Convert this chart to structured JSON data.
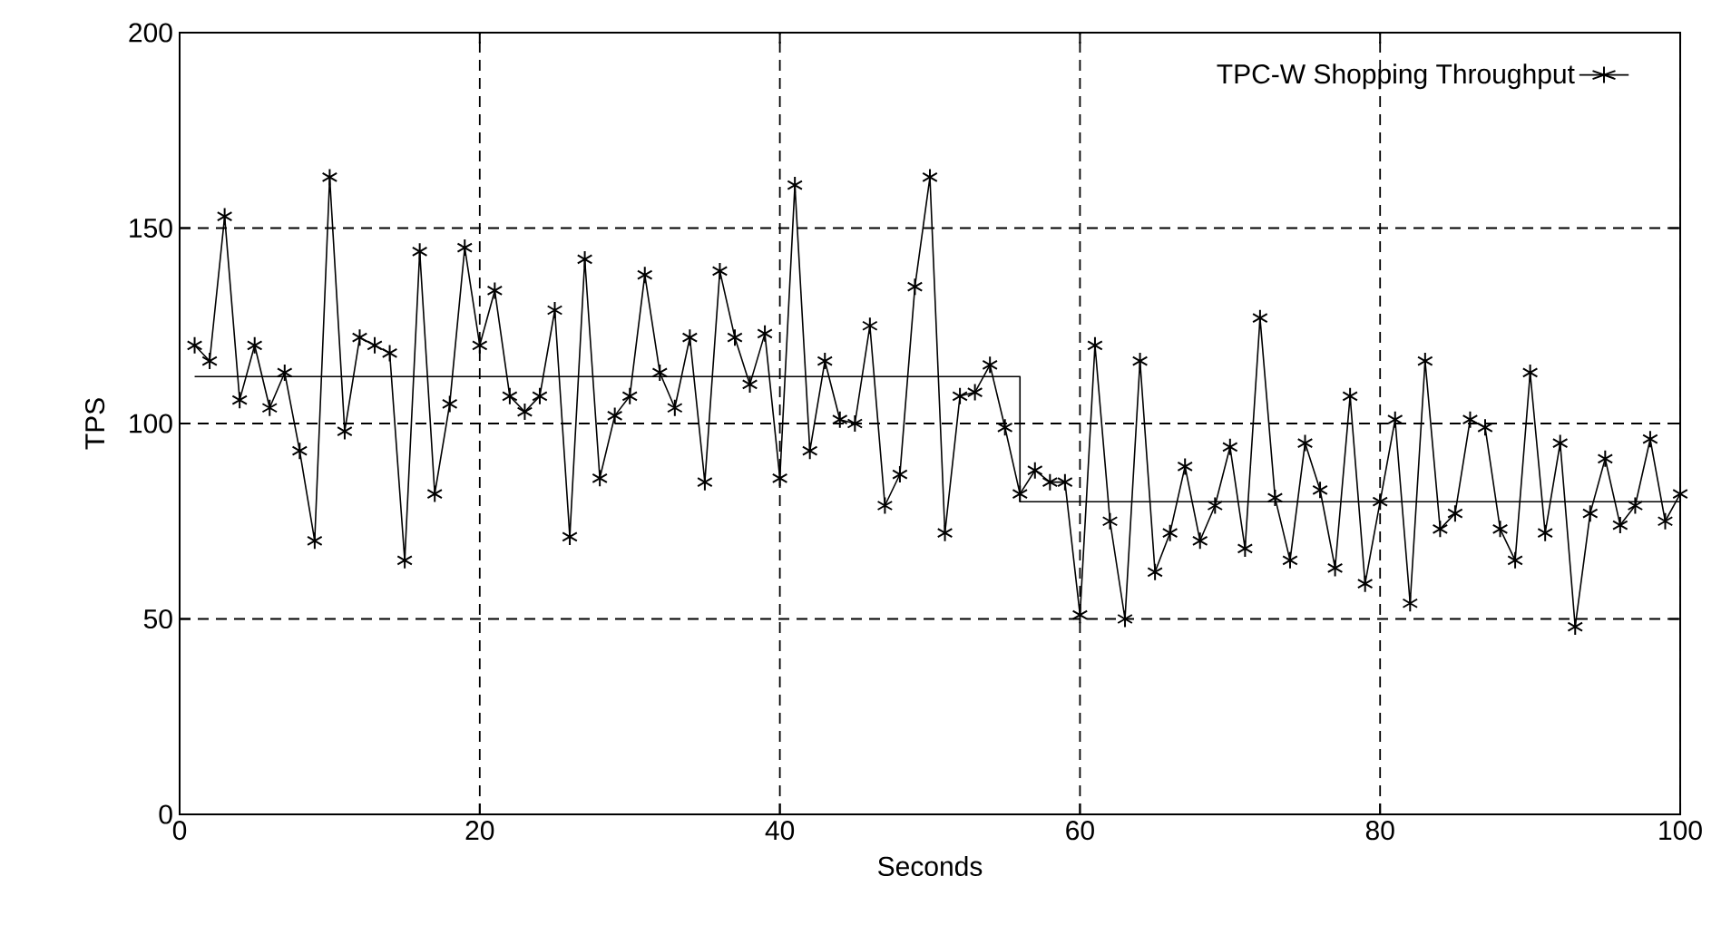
{
  "chart_data": {
    "type": "line",
    "xlabel": "Seconds",
    "ylabel": "TPS",
    "xlim": [
      0,
      100
    ],
    "ylim": [
      0,
      200
    ],
    "xticks": [
      0,
      20,
      40,
      60,
      80,
      100
    ],
    "yticks": [
      0,
      50,
      100,
      150,
      200
    ],
    "grid": true,
    "legend": "top right",
    "line_style": "solid",
    "series": [
      {
        "name": "TPC-W Shopping Throughput",
        "color": "#000000",
        "marker": "cross",
        "x": [
          1,
          2,
          3,
          4,
          5,
          6,
          7,
          8,
          9,
          10,
          11,
          12,
          13,
          14,
          15,
          16,
          17,
          18,
          19,
          20,
          21,
          22,
          23,
          24,
          25,
          26,
          27,
          28,
          29,
          30,
          31,
          32,
          33,
          34,
          35,
          36,
          37,
          38,
          39,
          40,
          41,
          42,
          43,
          44,
          45,
          46,
          47,
          48,
          49,
          50,
          51,
          52,
          53,
          54,
          55,
          56,
          57,
          58,
          59,
          60,
          61,
          62,
          63,
          64,
          65,
          66,
          67,
          68,
          69,
          70,
          71,
          72,
          73,
          74,
          75,
          76,
          77,
          78,
          79,
          80,
          81,
          82,
          83,
          84,
          85,
          86,
          87,
          88,
          89,
          90,
          91,
          92,
          93,
          94,
          95,
          96,
          97,
          98,
          99,
          100
        ],
        "values": [
          120,
          116,
          153,
          106,
          120,
          104,
          113,
          93,
          70,
          163,
          98,
          122,
          120,
          118,
          65,
          144,
          82,
          105,
          145,
          120,
          134,
          107,
          103,
          107,
          129,
          71,
          142,
          86,
          102,
          107,
          138,
          113,
          104,
          122,
          85,
          139,
          122,
          110,
          123,
          86,
          161,
          93,
          116,
          101,
          100,
          125,
          79,
          87,
          135,
          163,
          72,
          107,
          108,
          115,
          99,
          82,
          88,
          85,
          85,
          51,
          120,
          75,
          50,
          116,
          62,
          72,
          89,
          70,
          79,
          94,
          68,
          127,
          81,
          65,
          95,
          83,
          63,
          107,
          59,
          80,
          101,
          54,
          116,
          73,
          77,
          101,
          99,
          73,
          65,
          113,
          72,
          95,
          48,
          77,
          91,
          74,
          79,
          96,
          75,
          82
        ]
      },
      {
        "color": "#000000",
        "marker": "none",
        "x": [
          1,
          56,
          56,
          100
        ],
        "values": [
          112,
          112,
          80,
          80
        ]
      }
    ]
  }
}
